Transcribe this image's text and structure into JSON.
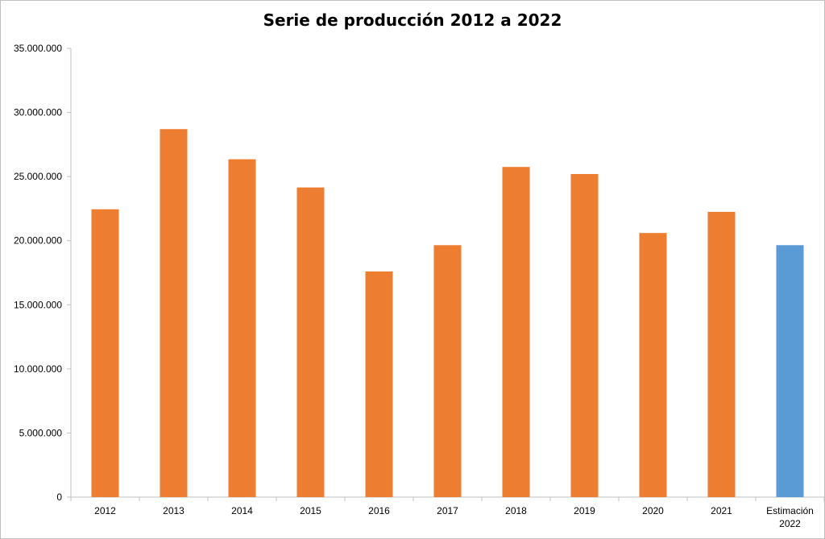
{
  "chart_data": {
    "type": "bar",
    "title": "Serie de producción 2012 a 2022",
    "xlabel": "",
    "ylabel": "",
    "categories": [
      "2012",
      "2013",
      "2014",
      "2015",
      "2016",
      "2017",
      "2018",
      "2019",
      "2020",
      "2021",
      "Estimación 2022"
    ],
    "category_lines": [
      [
        "2012"
      ],
      [
        "2013"
      ],
      [
        "2014"
      ],
      [
        "2015"
      ],
      [
        "2016"
      ],
      [
        "2017"
      ],
      [
        "2018"
      ],
      [
        "2019"
      ],
      [
        "2020"
      ],
      [
        "2021"
      ],
      [
        "Estimación",
        "2022"
      ]
    ],
    "values": [
      22450000,
      28700000,
      26350000,
      24150000,
      17600000,
      19650000,
      25750000,
      25200000,
      20600000,
      22250000,
      19650000
    ],
    "bar_colors": [
      "#ED7D31",
      "#ED7D31",
      "#ED7D31",
      "#ED7D31",
      "#ED7D31",
      "#ED7D31",
      "#ED7D31",
      "#ED7D31",
      "#ED7D31",
      "#ED7D31",
      "#5B9BD5"
    ],
    "ylim": [
      0,
      35000000
    ],
    "yticks": [
      0,
      5000000,
      10000000,
      15000000,
      20000000,
      25000000,
      30000000,
      35000000
    ],
    "ytick_labels": [
      "0",
      "5.000.000",
      "10.000.000",
      "15.000.000",
      "20.000.000",
      "25.000.000",
      "30.000.000",
      "35.000.000"
    ],
    "grid": false,
    "legend": "none"
  },
  "colors": {
    "axis": "#BFBFBF",
    "text": "#000000",
    "series_main": "#ED7D31",
    "series_estimate": "#5B9BD5"
  }
}
